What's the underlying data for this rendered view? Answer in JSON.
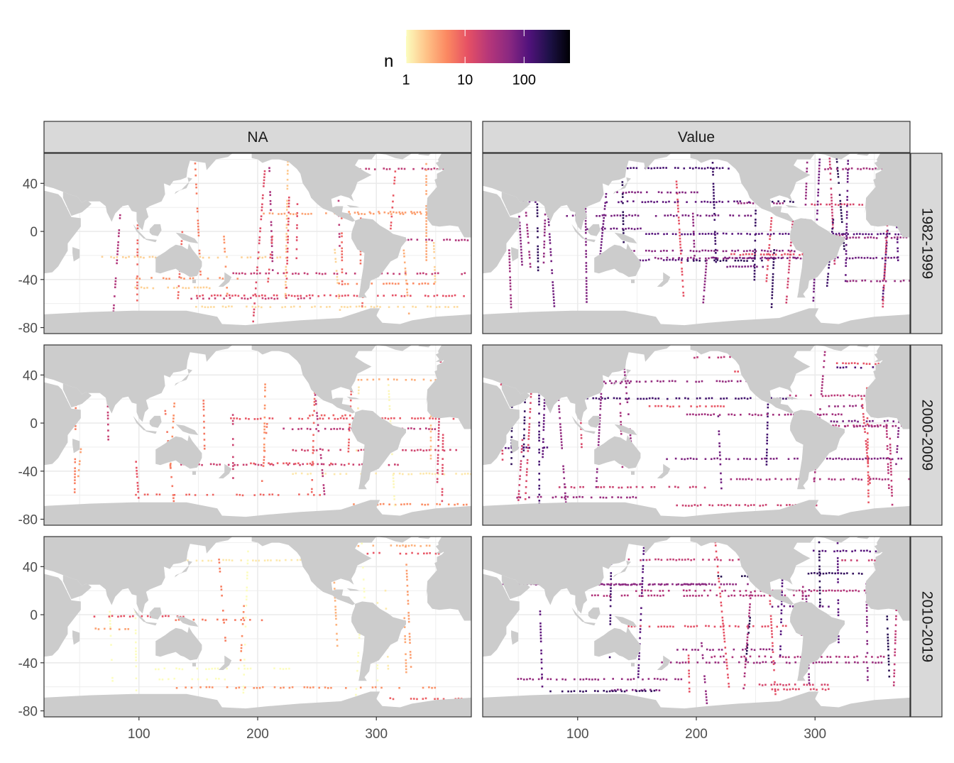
{
  "chart_data": {
    "type": "heatmap",
    "legend": {
      "title": "n",
      "position": "top",
      "scale": "log10",
      "range": [
        1,
        600
      ],
      "breaks": [
        1,
        10,
        100
      ],
      "break_labels": [
        "1",
        "10",
        "100"
      ],
      "colors": [
        "#fcfdbf",
        "#fec287",
        "#fb8861",
        "#e65164",
        "#b73779",
        "#8c2981",
        "#51127c",
        "#1d1147",
        "#000004"
      ]
    },
    "facet_columns": [
      "NA",
      "Value"
    ],
    "facet_rows": [
      "1982-1999",
      "2000-2009",
      "2010-2019"
    ],
    "x_axis": {
      "ticks": [
        100,
        200,
        300
      ],
      "tick_labels": [
        "100",
        "200",
        "300"
      ],
      "range": [
        20,
        380
      ],
      "label": ""
    },
    "y_axis": {
      "ticks": [
        40,
        0,
        -40,
        -80
      ],
      "tick_labels": [
        "40",
        "0",
        "-40",
        "-80"
      ],
      "range": [
        -85,
        65
      ],
      "label": ""
    },
    "grid": true,
    "land_color": "#cccccc",
    "ocean_color": "#ffffff",
    "panels": [
      {
        "column": "NA",
        "row": "1982-1999",
        "density": 0.35,
        "level": 0.3
      },
      {
        "column": "Value",
        "row": "1982-1999",
        "density": 0.7,
        "level": 0.62
      },
      {
        "column": "NA",
        "row": "2000-2009",
        "density": 0.25,
        "level": 0.25
      },
      {
        "column": "Value",
        "row": "2000-2009",
        "density": 0.55,
        "level": 0.6
      },
      {
        "column": "NA",
        "row": "2010-2019",
        "density": 0.15,
        "level": 0.15
      },
      {
        "column": "Value",
        "row": "2010-2019",
        "density": 0.5,
        "level": 0.62
      }
    ]
  }
}
